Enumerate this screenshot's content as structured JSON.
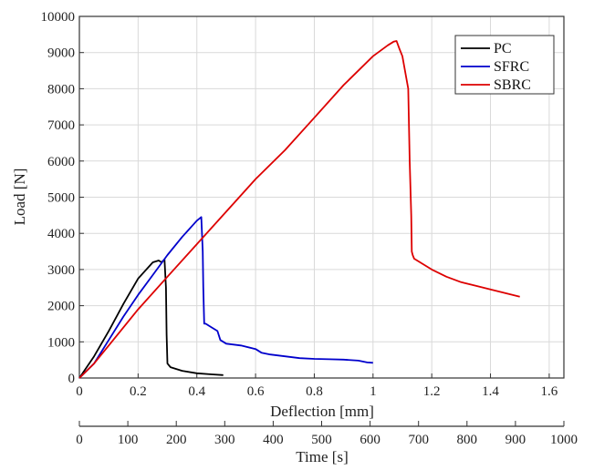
{
  "chart_data": {
    "type": "line",
    "xlabel": "Deflection [mm]",
    "ylabel": "Load [N]",
    "x2label": "Time [s]",
    "xlim": [
      0,
      1.65
    ],
    "ylim": [
      0,
      10000
    ],
    "x2lim": [
      0,
      1000
    ],
    "xticks": [
      "0",
      "0.2",
      "0.4",
      "0.6",
      "0.8",
      "1",
      "1.2",
      "1.4",
      "1.6"
    ],
    "yticks": [
      "0",
      "1000",
      "2000",
      "3000",
      "4000",
      "5000",
      "6000",
      "7000",
      "8000",
      "9000",
      "10000"
    ],
    "x2ticks": [
      "0",
      "100",
      "200",
      "300",
      "400",
      "500",
      "600",
      "700",
      "800",
      "900",
      "1000"
    ],
    "grid": true,
    "legend_position": "top-right",
    "series": [
      {
        "name": "PC",
        "color": "#000000",
        "x": [
          0,
          0.05,
          0.1,
          0.15,
          0.2,
          0.25,
          0.27,
          0.28,
          0.29,
          0.295,
          0.297,
          0.3,
          0.31,
          0.35,
          0.4,
          0.45,
          0.49
        ],
        "y": [
          0,
          600,
          1300,
          2050,
          2750,
          3200,
          3250,
          3200,
          3280,
          2500,
          1200,
          400,
          300,
          200,
          130,
          100,
          80
        ]
      },
      {
        "name": "SFRC",
        "color": "#0000cc",
        "x": [
          0,
          0.05,
          0.1,
          0.15,
          0.2,
          0.25,
          0.3,
          0.35,
          0.4,
          0.415,
          0.42,
          0.422,
          0.425,
          0.43,
          0.45,
          0.47,
          0.48,
          0.49,
          0.5,
          0.55,
          0.6,
          0.62,
          0.65,
          0.7,
          0.75,
          0.8,
          0.85,
          0.9,
          0.95,
          0.98,
          1.0
        ],
        "y": [
          0,
          400,
          1050,
          1700,
          2300,
          2850,
          3400,
          3900,
          4350,
          4450,
          3500,
          2500,
          1500,
          1500,
          1400,
          1300,
          1050,
          1000,
          950,
          900,
          800,
          700,
          650,
          600,
          550,
          530,
          520,
          510,
          480,
          430,
          420
        ]
      },
      {
        "name": "SBRC",
        "color": "#dd0000",
        "x": [
          0,
          0.05,
          0.1,
          0.2,
          0.3,
          0.4,
          0.5,
          0.6,
          0.7,
          0.8,
          0.9,
          1.0,
          1.05,
          1.07,
          1.08,
          1.09,
          1.1,
          1.12,
          1.125,
          1.13,
          1.132,
          1.135,
          1.14,
          1.2,
          1.25,
          1.3,
          1.35,
          1.4,
          1.45,
          1.5
        ],
        "y": [
          0,
          400,
          900,
          1900,
          2800,
          3700,
          4600,
          5500,
          6300,
          7200,
          8100,
          8900,
          9200,
          9300,
          9320,
          9100,
          8900,
          8000,
          6000,
          4500,
          3500,
          3400,
          3300,
          3000,
          2800,
          2650,
          2550,
          2450,
          2350,
          2250
        ]
      }
    ]
  }
}
